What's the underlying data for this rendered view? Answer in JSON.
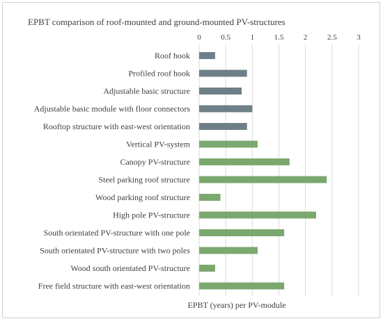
{
  "chart_data": {
    "type": "bar",
    "orientation": "horizontal",
    "title": "EPBT comparison of roof-mounted and ground-mounted PV-structures",
    "xlabel": "EPBT (years) per PV-module",
    "ylabel": "",
    "xlim": [
      0,
      3
    ],
    "xticks": [
      "0",
      "0.5",
      "1",
      "1.5",
      "2",
      "2.5",
      "3"
    ],
    "tick_position": "top",
    "grid": true,
    "legend": "none",
    "categories": [
      "Roof hook",
      "Profiled roof hook",
      "Adjustable basic structure",
      "Adjustable basic module with floor connectors",
      "Rooftop structure with east-west orientation",
      "Vertical PV-system",
      "Canopy PV-structure",
      "Steel parking roof structure",
      "Wood parking roof structure",
      "High pole PV-structure",
      "South orientated PV-structure with one pole",
      "South orientated PV-structure with two poles",
      "Wood south orientated PV-structure",
      "Free field structure with east-west orientation"
    ],
    "values": [
      0.3,
      0.9,
      0.8,
      1.0,
      0.9,
      1.1,
      1.7,
      2.4,
      0.4,
      2.2,
      1.6,
      1.1,
      0.3,
      1.6
    ],
    "group": [
      "roof",
      "roof",
      "roof",
      "roof",
      "roof",
      "ground",
      "ground",
      "ground",
      "ground",
      "ground",
      "ground",
      "ground",
      "ground",
      "ground"
    ],
    "colors": {
      "roof": "#6f7f87",
      "ground": "#7ba86f",
      "grid": "#d9d9d9",
      "text": "#404040"
    }
  }
}
